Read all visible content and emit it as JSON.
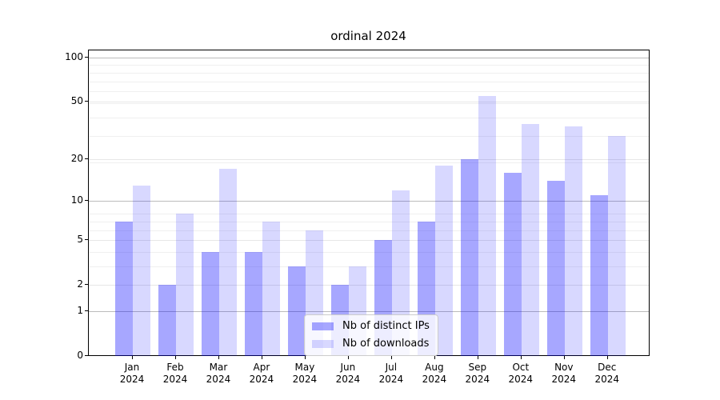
{
  "chart_data": {
    "type": "bar",
    "title": "ordinal 2024",
    "categories": [
      "Jan 2024",
      "Feb 2024",
      "Mar 2024",
      "Apr 2024",
      "May 2024",
      "Jun 2024",
      "Jul 2024",
      "Aug 2024",
      "Sep 2024",
      "Oct 2024",
      "Nov 2024",
      "Dec 2024"
    ],
    "series": [
      {
        "name": "Nb of distinct IPs",
        "color": "#0000ff",
        "alpha": 0.345,
        "values": [
          7,
          2,
          4,
          4,
          3,
          2,
          5,
          7,
          20,
          16,
          14,
          11
        ]
      },
      {
        "name": "Nb of downloads",
        "color": "#0000ff",
        "alpha": 0.153,
        "values": [
          13,
          8,
          17,
          7,
          6,
          3,
          12,
          18,
          55,
          35,
          34,
          29
        ]
      }
    ],
    "xlabel": "",
    "ylabel": "",
    "yscale": "log1p",
    "yticks": [
      0,
      1,
      2,
      5,
      10,
      20,
      50,
      100
    ],
    "ylim": [
      0,
      111.7
    ],
    "grid": true,
    "legend_position": "lower center"
  }
}
